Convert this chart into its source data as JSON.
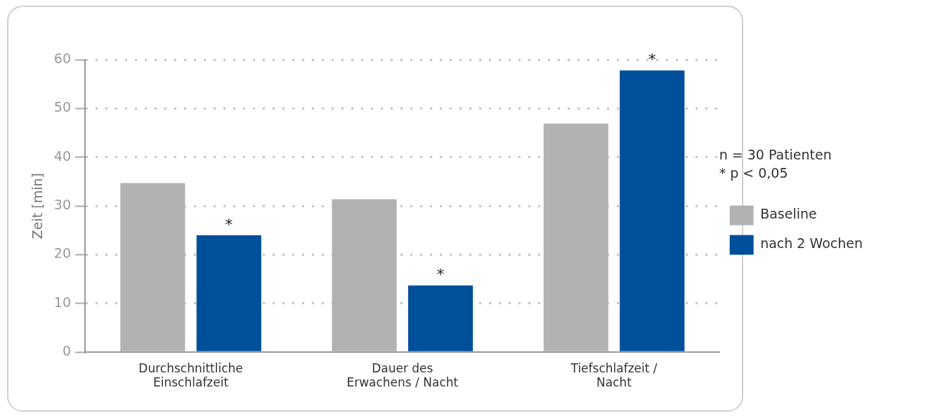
{
  "chart_data": {
    "type": "bar",
    "ylabel": "Zeit [min]",
    "categories": [
      "Durchschnittliche Einschlafzeit",
      "Dauer des Erwachens / Nacht",
      "Tiefschlafzeit / Nacht"
    ],
    "series": [
      {
        "name": "Baseline",
        "color": "#b2b2b2",
        "values": [
          34.7,
          31.4,
          46.9
        ]
      },
      {
        "name": "nach 2 Wochen",
        "color": "#004f9b",
        "values": [
          24.0,
          13.7,
          57.8
        ]
      }
    ],
    "ylim": [
      0,
      60
    ],
    "yticks": [
      0,
      10,
      20,
      30,
      40,
      50,
      60
    ],
    "grid": "y",
    "legend": "right",
    "annotations": [
      "*",
      "*",
      "*",
      "n = 30 Patienten",
      "* p < 0,05"
    ]
  }
}
